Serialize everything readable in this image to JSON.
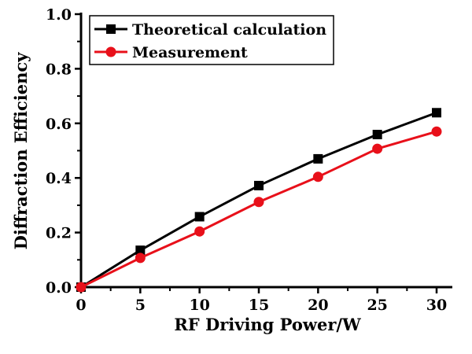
{
  "chart_data": {
    "type": "line",
    "title": "",
    "xlabel": "RF Driving Power/W",
    "ylabel": "Diffraction Efficiency",
    "xlim": [
      0,
      30
    ],
    "ylim": [
      0,
      1.0
    ],
    "xticks": [
      "0",
      "5",
      "10",
      "15",
      "20",
      "25",
      "30"
    ],
    "yticks": [
      "0.0",
      "0.2",
      "0.4",
      "0.6",
      "0.8",
      "1.0"
    ],
    "x": [
      0,
      5,
      10,
      15,
      20,
      25,
      30
    ],
    "legend_position": "top-left",
    "series": [
      {
        "name": "Theoretical calculation",
        "color": "#000000",
        "marker": "square",
        "values": [
          0,
          0.135,
          0.258,
          0.372,
          0.47,
          0.559,
          0.639
        ]
      },
      {
        "name": "Measurement",
        "color": "#e8101a",
        "marker": "circle",
        "values": [
          0,
          0.107,
          0.204,
          0.312,
          0.404,
          0.507,
          0.57
        ]
      }
    ]
  }
}
